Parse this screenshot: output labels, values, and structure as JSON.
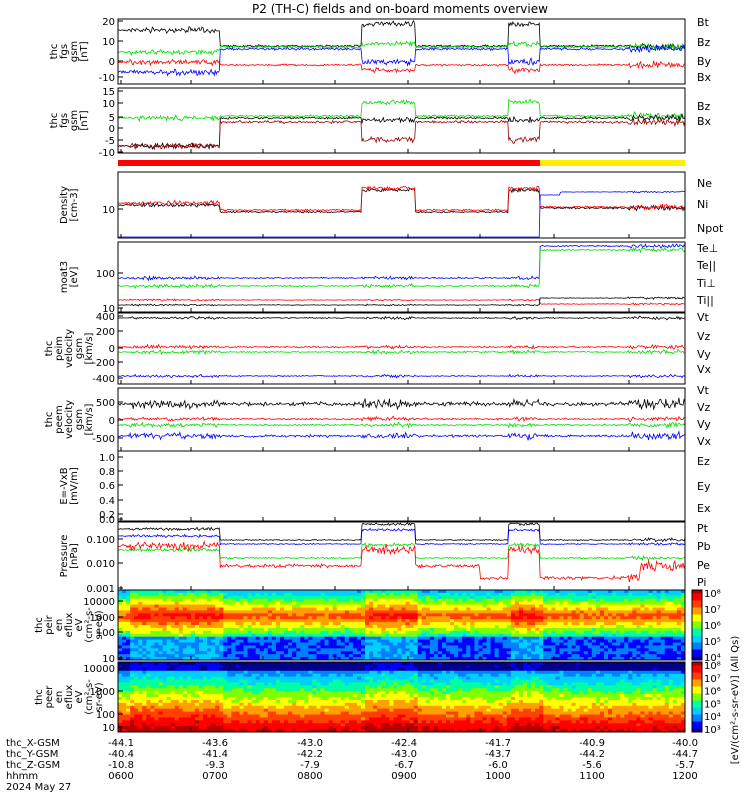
{
  "title": "P2 (TH-C) fields and on-board moments overview",
  "colors": {
    "black": "#000000",
    "red": "#ff0000",
    "green": "#00dd00",
    "blue": "#0000ff",
    "yellow": "#ffee00",
    "darkred": "#990000",
    "olive": "#999900"
  },
  "chart_data": {
    "type": "line",
    "x_ticks": [
      "0600",
      "0700",
      "0800",
      "0900",
      "1000",
      "1100",
      "1200"
    ],
    "ephemeris": {
      "labels": [
        "thc_X-GSM",
        "thc_Y-GSM",
        "thc_Z-GSM",
        "hhmm"
      ],
      "x_gsm": [
        "-44.1",
        "-43.6",
        "-43.0",
        "-42.4",
        "-41.7",
        "-40.9",
        "-40.0"
      ],
      "y_gsm": [
        "-40.4",
        "-41.4",
        "-42.2",
        "-43.0",
        "-43.7",
        "-44.2",
        "-44.7"
      ],
      "z_gsm": [
        "-10.8",
        "-9.3",
        "-7.9",
        "-6.7",
        "-6.0",
        "-5.6",
        "-5.7"
      ],
      "date": "2024 May 27"
    },
    "panels": [
      {
        "id": "p1",
        "ylabel": [
          "thc",
          "fgs",
          "gsm",
          "[nT]"
        ],
        "yticks": [
          "20",
          "10",
          "0",
          "-10"
        ],
        "legend": [
          {
            "name": "Bt",
            "color": "#000000"
          },
          {
            "name": "Bz",
            "color": "#ff0000"
          },
          {
            "name": "By",
            "color": "#00dd00"
          },
          {
            "name": "Bx",
            "color": "#0000ff"
          }
        ]
      },
      {
        "id": "p2",
        "ylabel": [
          "thc",
          "fgs",
          "gsm",
          "[nT]"
        ],
        "yticks": [
          "15",
          "10",
          "5",
          "0",
          "-5",
          "-10"
        ],
        "legend": [
          {
            "name": "Bz",
            "color": "#999900"
          },
          {
            "name": "Bx",
            "color": "#000000"
          }
        ]
      },
      {
        "id": "p3",
        "ylabel": [
          "Density",
          "[cm-3]"
        ],
        "yticks": [
          "10"
        ],
        "legend": [
          {
            "name": "Ne",
            "color": "#ff0000"
          },
          {
            "name": "Ni",
            "color": "#000000"
          },
          {
            "name": "Npot",
            "color": "#0000ff"
          }
        ]
      },
      {
        "id": "p4",
        "ylabel": [
          "moat3",
          "[eV]"
        ],
        "yticks": [
          "100",
          "10"
        ],
        "legend": [
          {
            "name": "Te⊥",
            "color": "#ff0000"
          },
          {
            "name": "Te||",
            "color": "#000000"
          },
          {
            "name": "Ti⊥",
            "color": "#0000ff"
          },
          {
            "name": "Ti||",
            "color": "#00dd00"
          }
        ]
      },
      {
        "id": "p5",
        "ylabel": [
          "thc",
          "peim",
          "velocity",
          "gsm",
          "[km/s]"
        ],
        "yticks": [
          "400",
          "200",
          "0",
          "-200",
          "-400"
        ],
        "legend": [
          {
            "name": "Vt",
            "color": "#000000"
          },
          {
            "name": "Vz",
            "color": "#ff0000"
          },
          {
            "name": "Vy",
            "color": "#00dd00"
          },
          {
            "name": "Vx",
            "color": "#0000ff"
          }
        ]
      },
      {
        "id": "p6",
        "ylabel": [
          "thc",
          "peem",
          "velocity",
          "gsm",
          "[km/s]"
        ],
        "yticks": [
          "500",
          "0",
          "-500"
        ],
        "legend": [
          {
            "name": "Vt",
            "color": "#000000"
          },
          {
            "name": "Vz",
            "color": "#ff0000"
          },
          {
            "name": "Vy",
            "color": "#00dd00"
          },
          {
            "name": "Vx",
            "color": "#0000ff"
          }
        ]
      },
      {
        "id": "p7",
        "ylabel": [
          "E=-VxB",
          "[mV/m]"
        ],
        "yticks": [
          "1.0",
          "0.8",
          "0.6",
          "0.4",
          "0.2",
          "0.0"
        ],
        "legend": [
          {
            "name": "Ez",
            "color": "#ff0000"
          },
          {
            "name": "Ey",
            "color": "#00dd00"
          },
          {
            "name": "Ex",
            "color": "#0000ff"
          }
        ]
      },
      {
        "id": "p8",
        "ylabel": [
          "Pressure",
          "[nPa]"
        ],
        "yticks": [
          "0.100",
          "0.010",
          "0.001"
        ],
        "legend": [
          {
            "name": "Pt",
            "color": "#000000"
          },
          {
            "name": "Pb",
            "color": "#ff0000"
          },
          {
            "name": "Pe",
            "color": "#00dd00"
          },
          {
            "name": "Pi",
            "color": "#0000ff"
          }
        ]
      },
      {
        "id": "p9",
        "ylabel": [
          "thc",
          "peir",
          "en",
          "eflux",
          "eV",
          "(cm²-s-",
          "sr-eV)"
        ],
        "yticks": [
          "10000",
          "1000",
          "100",
          "10"
        ]
      },
      {
        "id": "p10",
        "ylabel": [
          "thc",
          "peer",
          "en",
          "eflux",
          "eV",
          "(cm²-s-",
          "sr-eV)"
        ],
        "yticks": [
          "10000",
          "1000",
          "100",
          "10"
        ]
      }
    ],
    "colorbar": {
      "label": "[eV/(cm²-s-sr-eV)] (All Qs)",
      "ticks_top": [
        "10⁸",
        "10⁷",
        "10⁶",
        "10⁵",
        "10⁴"
      ],
      "ticks_bottom": [
        "10⁸",
        "10⁷",
        "10⁶",
        "10⁵",
        "10⁴",
        "10³"
      ]
    }
  }
}
